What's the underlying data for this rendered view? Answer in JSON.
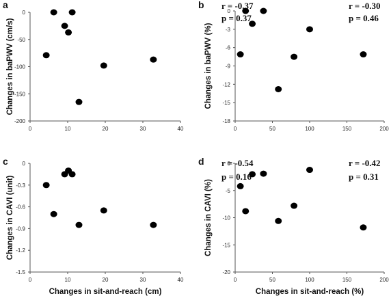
{
  "chart_data": [
    {
      "panel": "a",
      "type": "scatter",
      "ylabel": "Changes in baPWV (cm/s)",
      "xlabel": "",
      "xlim": [
        0,
        40
      ],
      "ylim": [
        -200,
        0
      ],
      "xticks": [
        "0",
        "10",
        "20",
        "30",
        "40"
      ],
      "yticks": [
        "0",
        "-50",
        "-100",
        "-150",
        "-200"
      ],
      "r": "r = -0.37",
      "p": "p = 0.37",
      "points": [
        {
          "x": 4.3,
          "y": -79
        },
        {
          "x": 6.3,
          "y": 0
        },
        {
          "x": 9.2,
          "y": -25
        },
        {
          "x": 10.2,
          "y": -37
        },
        {
          "x": 11.2,
          "y": 0
        },
        {
          "x": 13.0,
          "y": -165
        },
        {
          "x": 19.6,
          "y": -98
        },
        {
          "x": 32.8,
          "y": -87
        }
      ]
    },
    {
      "panel": "b",
      "type": "scatter",
      "ylabel": "Changes in baPWV (%)",
      "xlabel": "",
      "xlim": [
        0,
        200
      ],
      "ylim": [
        -18,
        0
      ],
      "xticks": [
        "0",
        "50",
        "100",
        "150",
        "200"
      ],
      "yticks": [
        "0",
        "-3",
        "-6",
        "-9",
        "-12",
        "-15",
        "-18"
      ],
      "r": "r = -0.30",
      "p": "p = 0.46",
      "points": [
        {
          "x": 7,
          "y": -7.1
        },
        {
          "x": 14,
          "y": 0
        },
        {
          "x": 23,
          "y": -2.1
        },
        {
          "x": 38,
          "y": 0
        },
        {
          "x": 58,
          "y": -12.8
        },
        {
          "x": 79,
          "y": -7.5
        },
        {
          "x": 100,
          "y": -3.0
        },
        {
          "x": 172,
          "y": -7.1
        }
      ]
    },
    {
      "panel": "c",
      "type": "scatter",
      "ylabel": "Changes in CAVI (unit)",
      "xlabel": "Changes in sit-and-reach (cm)",
      "xlim": [
        0,
        40
      ],
      "ylim": [
        -1.5,
        0
      ],
      "xticks": [
        "0",
        "10",
        "20",
        "30",
        "40"
      ],
      "yticks": [
        "0",
        "-0.3",
        "-0.6",
        "-0.9",
        "-1.2",
        "-1.5"
      ],
      "r": "r = -0.54",
      "p": "p = 0.16",
      "points": [
        {
          "x": 4.3,
          "y": -0.3
        },
        {
          "x": 6.3,
          "y": -0.7
        },
        {
          "x": 9.2,
          "y": -0.15
        },
        {
          "x": 10.2,
          "y": -0.1
        },
        {
          "x": 11.2,
          "y": -0.15
        },
        {
          "x": 13.0,
          "y": -0.85
        },
        {
          "x": 19.6,
          "y": -0.65
        },
        {
          "x": 32.8,
          "y": -0.85
        }
      ]
    },
    {
      "panel": "d",
      "type": "scatter",
      "ylabel": "Changes in CAVI (%)",
      "xlabel": "Changes in sit-and-reach (%)",
      "xlim": [
        0,
        200
      ],
      "ylim": [
        -20,
        0
      ],
      "xticks": [
        "0",
        "50",
        "100",
        "150",
        "200"
      ],
      "yticks": [
        "0",
        "-5",
        "-10",
        "-15",
        "-20"
      ],
      "r": "r = -0.42",
      "p": "p = 0.31",
      "points": [
        {
          "x": 7,
          "y": -4.2
        },
        {
          "x": 14,
          "y": -8.8
        },
        {
          "x": 23,
          "y": -2.0
        },
        {
          "x": 38,
          "y": -1.9
        },
        {
          "x": 58,
          "y": -10.6
        },
        {
          "x": 79,
          "y": -7.8
        },
        {
          "x": 100,
          "y": -1.2
        },
        {
          "x": 172,
          "y": -11.8
        }
      ]
    }
  ]
}
